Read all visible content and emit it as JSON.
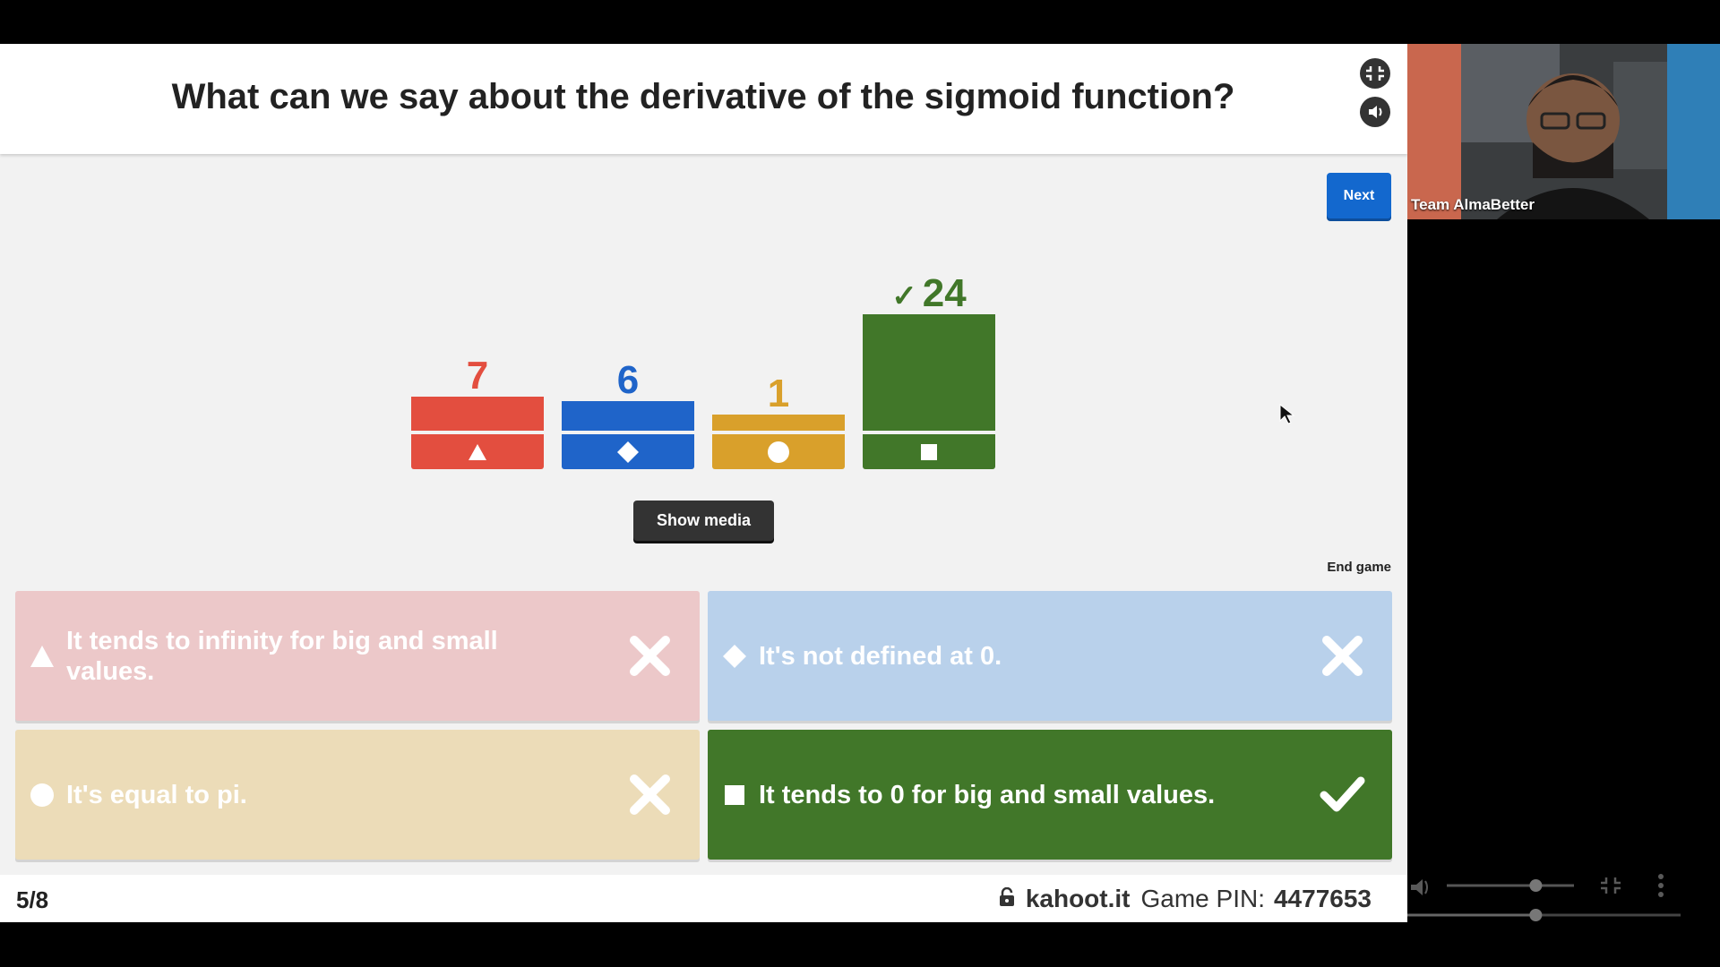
{
  "question": {
    "text": "What can we say about the derivative of the sigmoid function?"
  },
  "controls": {
    "next_label": "Next",
    "show_media_label": "Show media",
    "end_game_label": "End game"
  },
  "results": [
    {
      "count": "7",
      "value": 7,
      "color": "#e34e3f",
      "shape": "triangle",
      "correct": false
    },
    {
      "count": "6",
      "value": 6,
      "color": "#1f64c9",
      "shape": "diamond",
      "correct": false
    },
    {
      "count": "1",
      "value": 1,
      "color": "#d9a02b",
      "shape": "circle",
      "correct": false
    },
    {
      "count": "24",
      "value": 24,
      "color": "#417729",
      "shape": "square",
      "correct": true
    }
  ],
  "answers": [
    {
      "text": "It tends to infinity for big and small values.",
      "shape": "triangle-icon",
      "result": "cross-icon"
    },
    {
      "text": "It's not defined at 0.",
      "shape": "diamond-icon",
      "result": "cross-icon"
    },
    {
      "text": "It's equal to pi.",
      "shape": "circle-icon",
      "result": "cross-icon"
    },
    {
      "text": "It tends to 0 for big and small values.",
      "shape": "square-icon",
      "result": "check-icon"
    }
  ],
  "footer": {
    "question_counter": "5/8",
    "site": "kahoot.it",
    "pin_label": "Game PIN:",
    "pin_value": "4477653"
  },
  "webcam": {
    "name": "Team AlmaBetter"
  },
  "player": {
    "volume_level": 0.7,
    "progress": 0.47
  }
}
